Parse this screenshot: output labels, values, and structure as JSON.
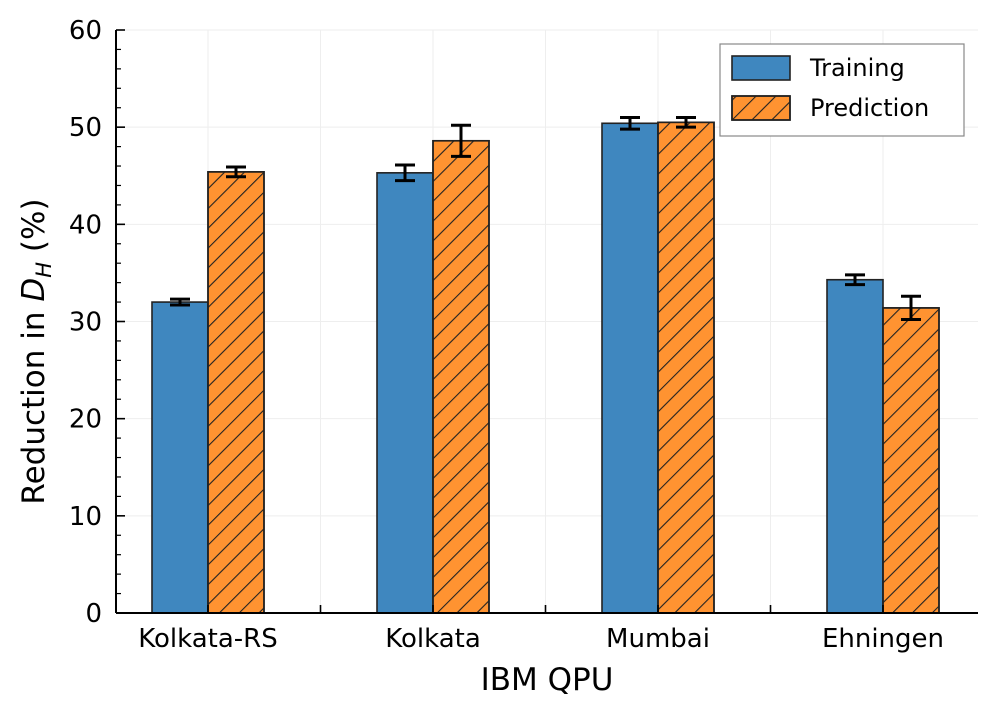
{
  "chart_data": {
    "type": "bar",
    "xlabel": "IBM QPU",
    "ylabel_main": "Reduction in ",
    "ylabel_symbol": "D",
    "ylabel_subscript": "H",
    "ylabel_unit": " (%)",
    "ylim": [
      0,
      60
    ],
    "yticks": [
      "0",
      "10",
      "20",
      "30",
      "40",
      "50",
      "60"
    ],
    "categories": [
      "Kolkata-RS",
      "Kolkata",
      "Mumbai",
      "Ehningen"
    ],
    "series": [
      {
        "name": "Training",
        "color": "#3f87bf",
        "hatch": false,
        "values": [
          32.0,
          45.3,
          50.4,
          34.3
        ],
        "errors": [
          0.3,
          0.8,
          0.6,
          0.5
        ]
      },
      {
        "name": "Prediction",
        "color": "#ff9331",
        "hatch": true,
        "values": [
          45.4,
          48.6,
          50.5,
          31.4
        ],
        "errors": [
          0.5,
          1.6,
          0.5,
          1.2
        ]
      }
    ],
    "grid": true,
    "legend_position": "top-right"
  }
}
